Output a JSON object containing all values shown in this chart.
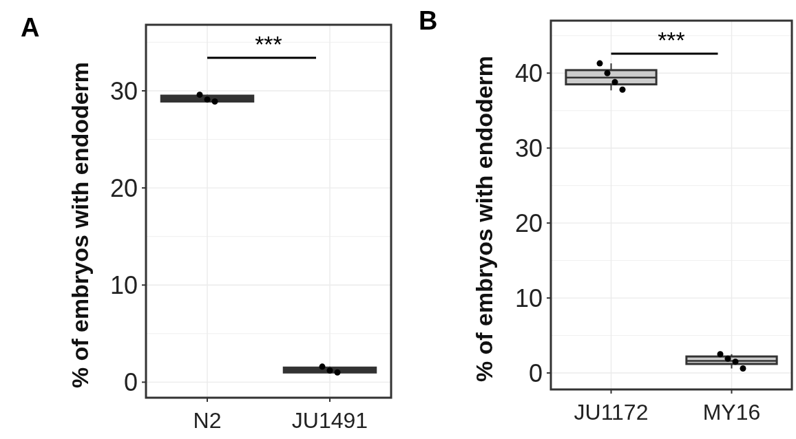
{
  "chart_data": [
    {
      "type": "box",
      "title": "A",
      "ylabel": "% of embryos with endoderm",
      "categories": [
        "N2",
        "JU1491"
      ],
      "ylim": [
        -1.6,
        36.8
      ],
      "yticks": [
        0,
        {
          "value": 5,
          "label": null
        },
        10,
        {
          "value": 15,
          "label": null
        },
        20,
        {
          "value": 25,
          "label": null
        },
        30,
        {
          "value": 35,
          "label": null
        }
      ],
      "grid": true,
      "annotations": [
        "***"
      ],
      "series": [
        {
          "color": "#333333",
          "boxes": [
            {
              "low": 28.9,
              "q1": 28.9,
              "median": 29.2,
              "q3": 29.5,
              "high": 29.6
            },
            {
              "low": 1.0,
              "q1": 1.0,
              "median": 1.2,
              "q3": 1.5,
              "high": 1.6
            }
          ]
        },
        {
          "type": "scatter",
          "color": "#000000",
          "x": [
            "N2",
            "N2",
            "N2",
            "JU1491",
            "JU1491",
            "JU1491"
          ],
          "values": [
            29.6,
            29.1,
            28.9,
            1.6,
            1.2,
            1.0
          ]
        }
      ]
    },
    {
      "type": "box",
      "title": "B",
      "ylabel": "% of embryos with endoderm",
      "categories": [
        "JU1172",
        "MY16"
      ],
      "ylim": [
        -2.2,
        47.0
      ],
      "yticks": [
        0,
        {
          "value": 5,
          "label": null
        },
        10,
        {
          "value": 15,
          "label": null
        },
        20,
        {
          "value": 25,
          "label": null
        },
        30,
        {
          "value": 35,
          "label": null
        },
        40,
        {
          "value": 45,
          "label": null
        }
      ],
      "grid": true,
      "annotations": [
        "***"
      ],
      "series": [
        {
          "color": "#cccccc",
          "boxes": [
            {
              "low": 37.7,
              "q1": 38.5,
              "median": 39.4,
              "q3": 40.4,
              "high": 41.3
            },
            {
              "low": 0.6,
              "q1": 1.2,
              "median": 1.6,
              "q3": 2.2,
              "high": 2.5
            }
          ]
        },
        {
          "type": "scatter",
          "color": "#000000",
          "x": [
            "JU1172",
            "JU1172",
            "JU1172",
            "JU1172",
            "MY16",
            "MY16",
            "MY16",
            "MY16"
          ],
          "values": [
            41.3,
            40.0,
            38.8,
            37.8,
            2.5,
            1.9,
            1.5,
            0.6
          ]
        }
      ]
    }
  ]
}
